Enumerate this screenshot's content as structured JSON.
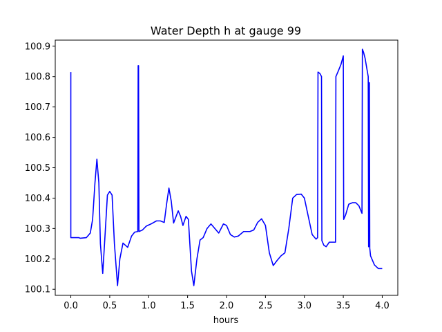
{
  "chart_data": {
    "type": "line",
    "title": "Water Depth h at gauge 99",
    "xlabel": "hours",
    "ylabel": "",
    "xlim": [
      -0.2,
      4.2
    ],
    "ylim": [
      100.08,
      100.92
    ],
    "xticks": [
      0.0,
      0.5,
      1.0,
      1.5,
      2.0,
      2.5,
      3.0,
      3.5,
      4.0
    ],
    "xtick_labels": [
      "0.0",
      "0.5",
      "1.0",
      "1.5",
      "2.0",
      "2.5",
      "3.0",
      "3.5",
      "4.0"
    ],
    "yticks": [
      100.1,
      100.2,
      100.3,
      100.4,
      100.5,
      100.6,
      100.7,
      100.8,
      100.9
    ],
    "ytick_labels": [
      "100.1",
      "100.2",
      "100.3",
      "100.4",
      "100.5",
      "100.6",
      "100.7",
      "100.8",
      "100.9"
    ],
    "grid": false,
    "legend": "none",
    "series": [
      {
        "color": "#0000ff",
        "points": [
          [
            0.0,
            100.815
          ],
          [
            0.0,
            100.27
          ],
          [
            0.1,
            100.27
          ],
          [
            0.12,
            100.268
          ],
          [
            0.2,
            100.27
          ],
          [
            0.25,
            100.285
          ],
          [
            0.28,
            100.33
          ],
          [
            0.31,
            100.45
          ],
          [
            0.335,
            100.528
          ],
          [
            0.36,
            100.45
          ],
          [
            0.38,
            100.25
          ],
          [
            0.41,
            100.152
          ],
          [
            0.44,
            100.28
          ],
          [
            0.47,
            100.41
          ],
          [
            0.5,
            100.422
          ],
          [
            0.53,
            100.41
          ],
          [
            0.56,
            100.25
          ],
          [
            0.6,
            100.112
          ],
          [
            0.63,
            100.2
          ],
          [
            0.67,
            100.252
          ],
          [
            0.73,
            100.238
          ],
          [
            0.78,
            100.275
          ],
          [
            0.82,
            100.288
          ],
          [
            0.86,
            100.29
          ],
          [
            0.865,
            100.836
          ],
          [
            0.87,
            100.836
          ],
          [
            0.875,
            100.29
          ],
          [
            0.92,
            100.295
          ],
          [
            0.97,
            100.308
          ],
          [
            1.03,
            100.315
          ],
          [
            1.1,
            100.325
          ],
          [
            1.15,
            100.325
          ],
          [
            1.2,
            100.32
          ],
          [
            1.23,
            100.38
          ],
          [
            1.26,
            100.433
          ],
          [
            1.29,
            100.39
          ],
          [
            1.32,
            100.318
          ],
          [
            1.36,
            100.345
          ],
          [
            1.38,
            100.358
          ],
          [
            1.41,
            100.34
          ],
          [
            1.44,
            100.31
          ],
          [
            1.48,
            100.34
          ],
          [
            1.51,
            100.33
          ],
          [
            1.55,
            100.16
          ],
          [
            1.58,
            100.112
          ],
          [
            1.62,
            100.2
          ],
          [
            1.66,
            100.262
          ],
          [
            1.7,
            100.27
          ],
          [
            1.75,
            100.3
          ],
          [
            1.8,
            100.315
          ],
          [
            1.85,
            100.3
          ],
          [
            1.9,
            100.285
          ],
          [
            1.96,
            100.315
          ],
          [
            2.0,
            100.31
          ],
          [
            2.05,
            100.28
          ],
          [
            2.1,
            100.272
          ],
          [
            2.15,
            100.275
          ],
          [
            2.22,
            100.29
          ],
          [
            2.3,
            100.29
          ],
          [
            2.35,
            100.295
          ],
          [
            2.4,
            100.32
          ],
          [
            2.45,
            100.332
          ],
          [
            2.5,
            100.31
          ],
          [
            2.55,
            100.22
          ],
          [
            2.6,
            100.178
          ],
          [
            2.65,
            100.195
          ],
          [
            2.7,
            100.21
          ],
          [
            2.75,
            100.22
          ],
          [
            2.8,
            100.3
          ],
          [
            2.85,
            100.4
          ],
          [
            2.9,
            100.412
          ],
          [
            2.96,
            100.413
          ],
          [
            3.0,
            100.4
          ],
          [
            3.05,
            100.34
          ],
          [
            3.1,
            100.28
          ],
          [
            3.15,
            100.265
          ],
          [
            3.17,
            100.27
          ],
          [
            3.175,
            100.815
          ],
          [
            3.2,
            100.81
          ],
          [
            3.22,
            100.8
          ],
          [
            3.225,
            100.26
          ],
          [
            3.25,
            100.245
          ],
          [
            3.28,
            100.24
          ],
          [
            3.32,
            100.255
          ],
          [
            3.4,
            100.255
          ],
          [
            3.405,
            100.8
          ],
          [
            3.43,
            100.815
          ],
          [
            3.47,
            100.84
          ],
          [
            3.5,
            100.868
          ],
          [
            3.505,
            100.33
          ],
          [
            3.53,
            100.345
          ],
          [
            3.57,
            100.38
          ],
          [
            3.62,
            100.385
          ],
          [
            3.66,
            100.385
          ],
          [
            3.7,
            100.375
          ],
          [
            3.74,
            100.35
          ],
          [
            3.745,
            100.89
          ],
          [
            3.76,
            100.88
          ],
          [
            3.78,
            100.86
          ],
          [
            3.82,
            100.8
          ],
          [
            3.825,
            100.24
          ],
          [
            3.83,
            100.78
          ],
          [
            3.835,
            100.78
          ],
          [
            3.84,
            100.235
          ],
          [
            3.85,
            100.21
          ],
          [
            3.9,
            100.18
          ],
          [
            3.95,
            100.168
          ],
          [
            4.0,
            100.168
          ]
        ]
      }
    ]
  }
}
